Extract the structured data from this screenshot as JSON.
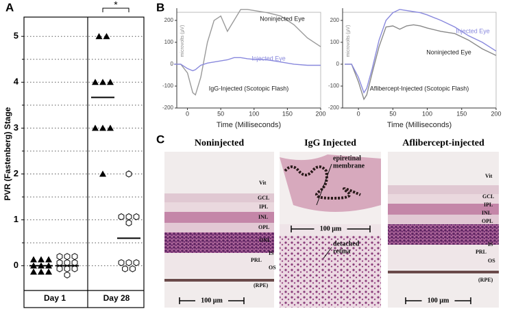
{
  "panel_labels": [
    "A",
    "B",
    "C"
  ],
  "chart_data": [
    {
      "type": "dot",
      "ylabel": "PVR (Fastenberg) Stage",
      "categories": [
        "Day 1",
        "Day 28"
      ],
      "ylim": [
        -0.54,
        5.42
      ],
      "yticks": [
        0,
        1,
        2,
        3,
        4,
        5
      ],
      "minor_yticks": [
        0.5,
        1.5,
        2.5,
        3.5,
        4.5
      ],
      "grid": true,
      "annotation": "*",
      "series": [
        {
          "marker": "triangle",
          "color": "#000000",
          "values": [
            [
              0,
              0,
              0,
              0,
              0,
              0,
              0,
              0,
              0
            ],
            [
              5,
              5,
              4,
              4,
              4,
              3,
              3,
              3,
              2
            ]
          ],
          "means": [
            0,
            3.67
          ]
        },
        {
          "marker": "hexagon",
          "color": "#000000",
          "values": [
            [
              0,
              0,
              0,
              0,
              0,
              0,
              0,
              0,
              0,
              0
            ],
            [
              2,
              1,
              1,
              1,
              1,
              0,
              0,
              0,
              0,
              0
            ]
          ],
          "means": [
            0,
            0.6
          ]
        }
      ]
    },
    {
      "type": "line",
      "subtitle": "IgG-Injected (Scotopic Flash)",
      "xlabel": "Time (Milliseconds)",
      "ylabel": "microvolts (µV)",
      "x": [
        -20,
        -10,
        0,
        8,
        12,
        20,
        30,
        40,
        50,
        60,
        70,
        80,
        90,
        100,
        120,
        140,
        160,
        180,
        200
      ],
      "xlim": [
        -16,
        200
      ],
      "xticks": [
        0,
        50,
        100,
        150,
        200
      ],
      "ylim": [
        -200,
        237
      ],
      "yticks": [
        -200,
        -100,
        0,
        100,
        200
      ],
      "series": [
        {
          "name": "Noninjected Eye",
          "color": "#999999",
          "label_color": "#222222",
          "values": [
            0,
            0,
            -40,
            -130,
            -140,
            -60,
            100,
            200,
            220,
            150,
            200,
            250,
            250,
            245,
            235,
            220,
            180,
            120,
            80
          ]
        },
        {
          "name": "Injected Eye",
          "color": "#8888dd",
          "label_color": "#8888dd",
          "values": [
            0,
            0,
            -20,
            -30,
            -25,
            -5,
            5,
            10,
            15,
            20,
            30,
            30,
            25,
            22,
            20,
            10,
            0,
            -5,
            -5
          ]
        }
      ]
    },
    {
      "type": "line",
      "subtitle": "Aflibercept-Injected (Scotopic Flash)",
      "xlabel": "Time (Milliseconds)",
      "ylabel": "microvolts (µV)",
      "x": [
        -20,
        -10,
        0,
        8,
        12,
        20,
        30,
        40,
        50,
        60,
        70,
        80,
        90,
        100,
        120,
        140,
        160,
        180,
        200
      ],
      "xlim": [
        -23,
        200
      ],
      "xticks": [
        0,
        50,
        100,
        150,
        200
      ],
      "ylim": [
        -200,
        237
      ],
      "yticks": [
        -200,
        -100,
        0,
        100,
        200
      ],
      "series": [
        {
          "name": "Noninjected Eye",
          "color": "#888888",
          "label_color": "#222222",
          "values": [
            0,
            0,
            -80,
            -160,
            -140,
            -40,
            80,
            170,
            175,
            160,
            175,
            180,
            175,
            165,
            150,
            140,
            110,
            70,
            40
          ]
        },
        {
          "name": "Injected Eye",
          "color": "#8888dd",
          "label_color": "#8888dd",
          "values": [
            0,
            0,
            -60,
            -130,
            -110,
            -20,
            110,
            200,
            235,
            250,
            245,
            240,
            235,
            225,
            200,
            170,
            130,
            100,
            60
          ]
        }
      ]
    }
  ],
  "micrographs": [
    {
      "title": "Noninjected",
      "labels": [
        "Vit",
        "GCL",
        "IPL",
        "INL",
        "OPL",
        "ONL",
        "IS",
        "PRL",
        "OS",
        "(RPE)"
      ],
      "scale_bar": "100 µm"
    },
    {
      "title": "IgG Injected",
      "labels": [
        "epiretinal",
        "membrane",
        "detached",
        "retina"
      ],
      "scale_bar": "100 µm"
    },
    {
      "title": "Aflibercept-injected",
      "labels": [
        "Vit",
        "GCL",
        "IPL",
        "INL",
        "OPL",
        "IS",
        "PRL",
        "OS",
        "(RPE)"
      ],
      "scale_bar": "100 µm"
    }
  ]
}
